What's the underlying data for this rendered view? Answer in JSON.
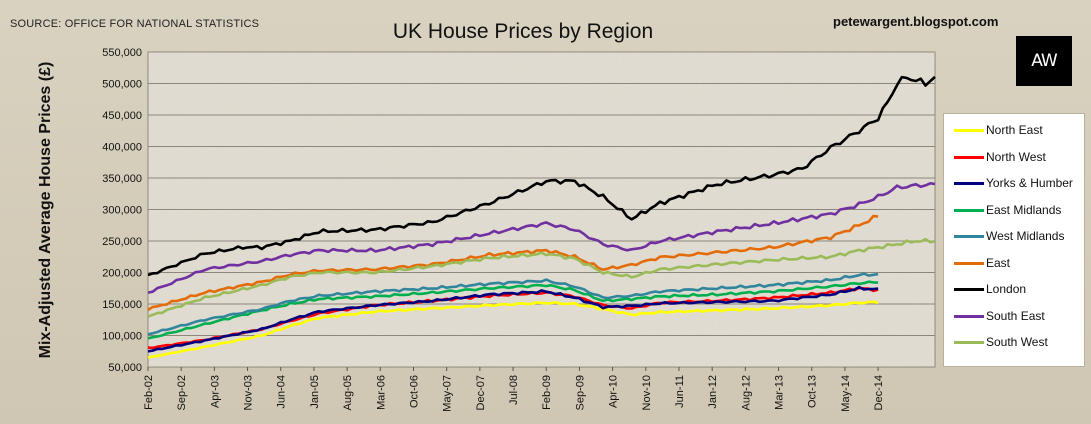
{
  "header": {
    "source": "SOURCE: OFFICE FOR NATIONAL STATISTICS",
    "blog": "petewargent.blogspot.com",
    "logo_text": "AW"
  },
  "colors": {
    "background": "#d4ccb9",
    "plot_bg": "#e6e1d6",
    "legend_bg": "#ffffff"
  },
  "chart_data": {
    "type": "line",
    "title": "UK House Prices by Region",
    "xlabel": "",
    "ylabel": "Mix-Adjusted Average House Prices (£)",
    "ylim": [
      50000,
      550000
    ],
    "yticks": [
      50000,
      100000,
      150000,
      200000,
      250000,
      300000,
      350000,
      400000,
      450000,
      500000,
      550000
    ],
    "ytick_labels": [
      "50,000",
      "100,000",
      "150,000",
      "200,000",
      "250,000",
      "300,000",
      "350,000",
      "400,000",
      "450,000",
      "500,000",
      "550,000"
    ],
    "x_months": 155,
    "x_tick_labels": [
      "Feb-02",
      "Sep-02",
      "Apr-03",
      "Nov-03",
      "Jun-04",
      "Jan-05",
      "Aug-05",
      "Mar-06",
      "Oct-06",
      "May-07",
      "Dec-07",
      "Jul-08",
      "Feb-09",
      "Sep-09",
      "Apr-10",
      "Nov-10",
      "Jun-11",
      "Jan-12",
      "Aug-12",
      "Mar-13",
      "Oct-13",
      "May-14",
      "Dec-14"
    ],
    "x_tick_step": 7,
    "grid": true,
    "legend_position": "right",
    "series": [
      {
        "name": "North East",
        "color": "#ffff00",
        "anchors": [
          [
            0,
            65000
          ],
          [
            12,
            82000
          ],
          [
            24,
            100000
          ],
          [
            30,
            115000
          ],
          [
            36,
            128000
          ],
          [
            48,
            138000
          ],
          [
            60,
            143000
          ],
          [
            72,
            148000
          ],
          [
            84,
            152000
          ],
          [
            90,
            150000
          ],
          [
            96,
            142000
          ],
          [
            102,
            133000
          ],
          [
            108,
            137000
          ],
          [
            120,
            140000
          ],
          [
            132,
            143000
          ],
          [
            144,
            148000
          ],
          [
            150,
            152000
          ],
          [
            154,
            153000
          ]
        ]
      },
      {
        "name": "North West",
        "color": "#ff0000",
        "anchors": [
          [
            0,
            80000
          ],
          [
            12,
            93000
          ],
          [
            24,
            110000
          ],
          [
            30,
            123000
          ],
          [
            36,
            135000
          ],
          [
            48,
            148000
          ],
          [
            60,
            155000
          ],
          [
            72,
            163000
          ],
          [
            84,
            168000
          ],
          [
            90,
            162000
          ],
          [
            96,
            148000
          ],
          [
            102,
            143000
          ],
          [
            108,
            152000
          ],
          [
            120,
            155000
          ],
          [
            132,
            160000
          ],
          [
            144,
            168000
          ],
          [
            150,
            175000
          ],
          [
            154,
            172000
          ]
        ]
      },
      {
        "name": "Yorks & Humber",
        "color": "#000080",
        "anchors": [
          [
            0,
            75000
          ],
          [
            12,
            92000
          ],
          [
            24,
            110000
          ],
          [
            30,
            125000
          ],
          [
            36,
            138000
          ],
          [
            48,
            148000
          ],
          [
            60,
            155000
          ],
          [
            72,
            165000
          ],
          [
            84,
            170000
          ],
          [
            90,
            160000
          ],
          [
            96,
            145000
          ],
          [
            102,
            147000
          ],
          [
            108,
            151000
          ],
          [
            120,
            153000
          ],
          [
            132,
            155000
          ],
          [
            144,
            165000
          ],
          [
            150,
            175000
          ],
          [
            154,
            173000
          ]
        ]
      },
      {
        "name": "East Midlands",
        "color": "#00b050",
        "anchors": [
          [
            0,
            95000
          ],
          [
            12,
            118000
          ],
          [
            24,
            140000
          ],
          [
            30,
            150000
          ],
          [
            36,
            158000
          ],
          [
            48,
            162000
          ],
          [
            60,
            168000
          ],
          [
            72,
            175000
          ],
          [
            84,
            180000
          ],
          [
            90,
            172000
          ],
          [
            96,
            155000
          ],
          [
            102,
            158000
          ],
          [
            108,
            162000
          ],
          [
            120,
            165000
          ],
          [
            132,
            170000
          ],
          [
            144,
            178000
          ],
          [
            150,
            183000
          ],
          [
            154,
            185000
          ]
        ]
      },
      {
        "name": "West Midlands",
        "color": "#31859c",
        "anchors": [
          [
            0,
            102000
          ],
          [
            12,
            125000
          ],
          [
            24,
            142000
          ],
          [
            30,
            155000
          ],
          [
            36,
            163000
          ],
          [
            48,
            170000
          ],
          [
            60,
            175000
          ],
          [
            72,
            182000
          ],
          [
            84,
            187000
          ],
          [
            90,
            178000
          ],
          [
            96,
            160000
          ],
          [
            102,
            163000
          ],
          [
            108,
            170000
          ],
          [
            120,
            175000
          ],
          [
            132,
            180000
          ],
          [
            144,
            188000
          ],
          [
            150,
            196000
          ],
          [
            154,
            197000
          ]
        ]
      },
      {
        "name": "East",
        "color": "#e36c09",
        "anchors": [
          [
            0,
            142000
          ],
          [
            12,
            168000
          ],
          [
            24,
            185000
          ],
          [
            30,
            197000
          ],
          [
            36,
            203000
          ],
          [
            48,
            205000
          ],
          [
            60,
            213000
          ],
          [
            72,
            228000
          ],
          [
            84,
            235000
          ],
          [
            90,
            225000
          ],
          [
            96,
            205000
          ],
          [
            102,
            212000
          ],
          [
            108,
            224000
          ],
          [
            120,
            232000
          ],
          [
            132,
            240000
          ],
          [
            144,
            256000
          ],
          [
            150,
            275000
          ],
          [
            154,
            290000
          ]
        ]
      },
      {
        "name": "London",
        "color": "#000000",
        "anchors": [
          [
            0,
            195000
          ],
          [
            12,
            230000
          ],
          [
            20,
            240000
          ],
          [
            24,
            240000
          ],
          [
            30,
            250000
          ],
          [
            36,
            265000
          ],
          [
            48,
            268000
          ],
          [
            60,
            280000
          ],
          [
            72,
            310000
          ],
          [
            84,
            345000
          ],
          [
            90,
            345000
          ],
          [
            96,
            320000
          ],
          [
            102,
            285000
          ],
          [
            108,
            310000
          ],
          [
            120,
            340000
          ],
          [
            132,
            355000
          ],
          [
            138,
            365000
          ],
          [
            144,
            398000
          ],
          [
            150,
            425000
          ],
          [
            154,
            445000
          ],
          [
            156,
            470000
          ],
          [
            158,
            500000
          ],
          [
            160,
            510000
          ],
          [
            162,
            505000
          ],
          [
            164,
            500000
          ],
          [
            166,
            510000
          ]
        ]
      },
      {
        "name": "South East",
        "color": "#7030a0",
        "anchors": [
          [
            0,
            168000
          ],
          [
            12,
            205000
          ],
          [
            24,
            218000
          ],
          [
            30,
            228000
          ],
          [
            36,
            235000
          ],
          [
            48,
            235000
          ],
          [
            60,
            245000
          ],
          [
            72,
            262000
          ],
          [
            84,
            278000
          ],
          [
            90,
            268000
          ],
          [
            96,
            245000
          ],
          [
            102,
            235000
          ],
          [
            108,
            250000
          ],
          [
            120,
            265000
          ],
          [
            132,
            278000
          ],
          [
            144,
            293000
          ],
          [
            150,
            308000
          ],
          [
            154,
            320000
          ],
          [
            158,
            335000
          ],
          [
            162,
            338000
          ],
          [
            166,
            340000
          ]
        ]
      },
      {
        "name": "South West",
        "color": "#9bbb59",
        "anchors": [
          [
            0,
            130000
          ],
          [
            12,
            160000
          ],
          [
            24,
            180000
          ],
          [
            30,
            193000
          ],
          [
            36,
            200000
          ],
          [
            48,
            200000
          ],
          [
            60,
            210000
          ],
          [
            72,
            223000
          ],
          [
            84,
            230000
          ],
          [
            90,
            222000
          ],
          [
            96,
            200000
          ],
          [
            102,
            193000
          ],
          [
            108,
            205000
          ],
          [
            120,
            213000
          ],
          [
            132,
            220000
          ],
          [
            144,
            225000
          ],
          [
            150,
            235000
          ],
          [
            154,
            240000
          ],
          [
            158,
            245000
          ],
          [
            162,
            250000
          ],
          [
            166,
            250000
          ]
        ]
      }
    ]
  }
}
